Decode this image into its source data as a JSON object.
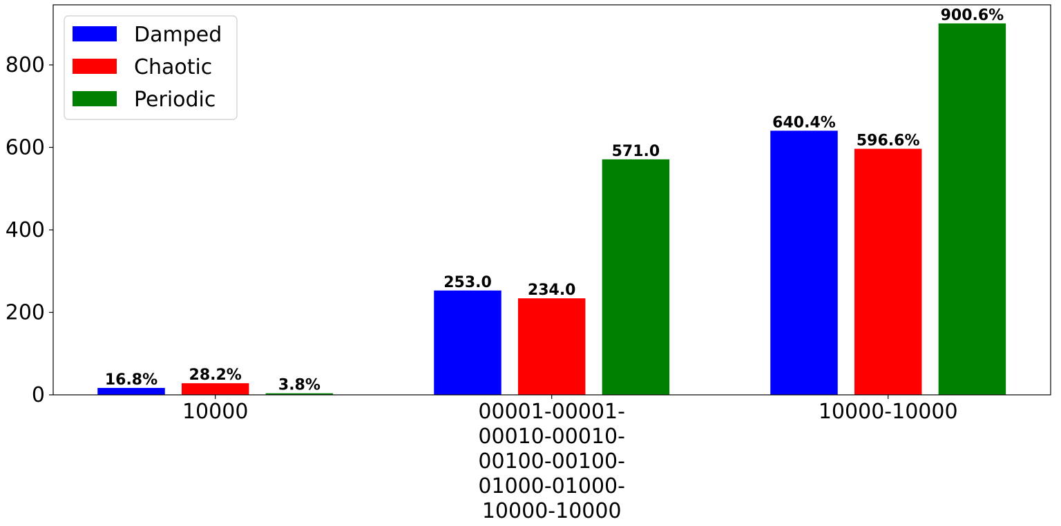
{
  "chart_data": {
    "type": "bar",
    "categories": [
      "10000",
      "00001-00001-\n00010-00010-\n00100-00100-\n01000-01000-\n10000-10000",
      "10000-10000"
    ],
    "series": [
      {
        "name": "Damped",
        "color": "#0000ff",
        "values": [
          16.8,
          253.0,
          640.4
        ],
        "labels": [
          "16.8%",
          "253.0",
          "640.4%"
        ]
      },
      {
        "name": "Chaotic",
        "color": "#ff0000",
        "values": [
          28.2,
          234.0,
          596.6
        ],
        "labels": [
          "28.2%",
          "234.0",
          "596.6%"
        ]
      },
      {
        "name": "Periodic",
        "color": "#008000",
        "values": [
          3.8,
          571.0,
          900.6
        ],
        "labels": [
          "3.8%",
          "571.0",
          "900.6%"
        ]
      }
    ],
    "yticks": [
      0,
      200,
      400,
      600,
      800
    ],
    "ylim": [
      0,
      945.6
    ],
    "title": "",
    "xlabel": "",
    "ylabel": "",
    "legend_position": "top-left",
    "grid": false
  }
}
